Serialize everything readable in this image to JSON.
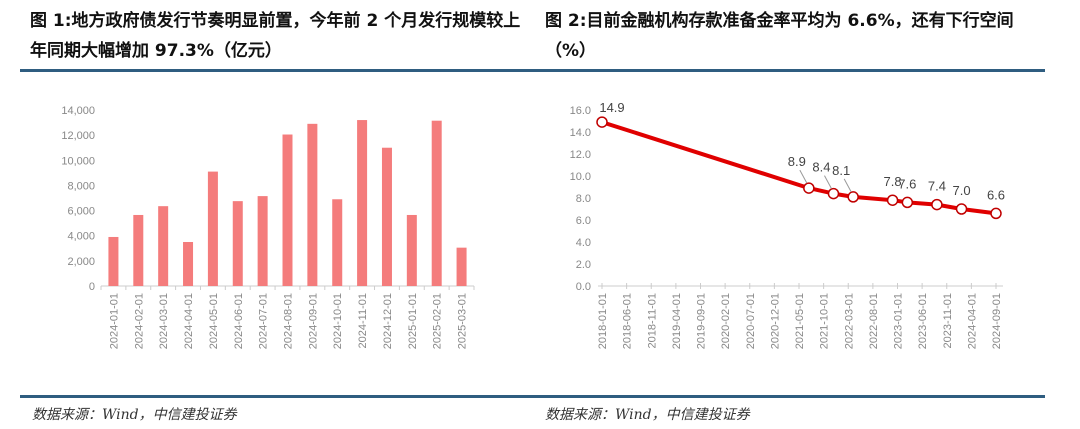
{
  "chart_data": [
    {
      "type": "bar",
      "title": "图 1:地方政府债发行节奏明显前置，今年前 2 个月发行规模较上年同期大幅增加 97.3%（亿元）",
      "categories": [
        "2024-01-01",
        "2024-02-01",
        "2024-03-01",
        "2024-04-01",
        "2024-05-01",
        "2024-06-01",
        "2024-07-01",
        "2024-08-01",
        "2024-09-01",
        "2024-10-01",
        "2024-11-01",
        "2024-12-01",
        "2025-01-01",
        "2025-02-01",
        "2025-03-01"
      ],
      "values": [
        3900,
        5650,
        6350,
        3500,
        9100,
        6750,
        7150,
        12050,
        12900,
        6900,
        13200,
        11000,
        5650,
        13150,
        3050
      ],
      "ylim": [
        0,
        14000
      ],
      "yticks": [
        "0",
        "2,000",
        "4,000",
        "6,000",
        "8,000",
        "10,000",
        "12,000",
        "14,000"
      ],
      "color": "#f47c7c",
      "grid": false,
      "source": "数据来源：Wind，中信建投证券"
    },
    {
      "type": "line",
      "title": "图 2:目前金融机构存款准备金率平均为 6.6%，还有下行空间（%）",
      "x": [
        "2018-01",
        "2021-07",
        "2021-12",
        "2022-04",
        "2022-12",
        "2023-03",
        "2023-09",
        "2024-02",
        "2024-09"
      ],
      "values": [
        14.9,
        8.9,
        8.4,
        8.1,
        7.8,
        7.6,
        7.4,
        7.0,
        6.6
      ],
      "data_labels": [
        "14.9",
        "8.9",
        "8.4",
        "8.1",
        "7.8",
        "7.6",
        "7.4",
        "7.0",
        "6.6"
      ],
      "xticks": [
        "2018-01-01",
        "2018-06-01",
        "2018-11-01",
        "2019-04-01",
        "2019-09-01",
        "2020-02-01",
        "2020-07-01",
        "2020-12-01",
        "2021-05-01",
        "2021-10-01",
        "2022-03-01",
        "2022-08-01",
        "2023-01-01",
        "2023-06-01",
        "2023-11-01",
        "2024-04-01",
        "2024-09-01"
      ],
      "ylim": [
        0,
        16
      ],
      "yticks": [
        "0.0",
        "2.0",
        "4.0",
        "6.0",
        "8.0",
        "10.0",
        "12.0",
        "14.0",
        "16.0"
      ],
      "color": "#e00000",
      "grid": false,
      "source": "数据来源：Wind，中信建投证券"
    }
  ]
}
